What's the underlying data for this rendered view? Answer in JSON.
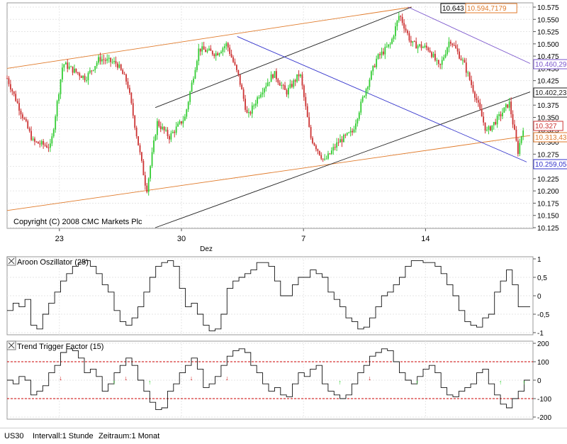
{
  "copyright": "Copyright (C) 2008 CMC Markets Plc",
  "footer": {
    "symbol": "US30",
    "interval": "Intervall:1 Stunde",
    "period": "Zeitraum:1 Monat"
  },
  "colors": {
    "up_candle": "#33cc33",
    "down_candle": "#cc3333",
    "channel_orange": "#e07a2a",
    "channel_black": "#222222",
    "channel_blue": "#3333cc",
    "channel_purple": "#7a55cc",
    "threshold_red": "#cc0000",
    "arrow_up": "#22cc22",
    "arrow_down": "#cc0000"
  },
  "chart_data": [
    {
      "type": "candlestick",
      "panel": "price",
      "x_tick_labels": [
        "23",
        "30",
        "7",
        "14"
      ],
      "x_sublabel": "Dez",
      "y_tick_labels": [
        "10.575",
        "10.550",
        "10.525",
        "10.500",
        "10.475",
        "10.450",
        "10.425",
        "10.400",
        "10.375",
        "10.350",
        "10.325",
        "10.300",
        "10.275",
        "10.250",
        "10.225",
        "10.200",
        "10.175",
        "10.150",
        "10.125"
      ],
      "ylim": [
        10125,
        10575
      ],
      "price_labels": [
        {
          "text": "10.643",
          "color": "#000000"
        },
        {
          "text": "10.594,7179",
          "color": "#e07a2a"
        },
        {
          "text": "10.460,29",
          "color": "#7a55cc"
        },
        {
          "text": "10.402,23",
          "color": "#222222"
        },
        {
          "text": "10.327",
          "color": "#cc3333"
        },
        {
          "text": "10.313,43",
          "color": "#e07a2a"
        },
        {
          "text": "10.259,05",
          "color": "#3333cc"
        }
      ],
      "path": [
        {
          "day": 0,
          "value": 10430
        },
        {
          "day": 1.5,
          "value": 10300
        },
        {
          "day": 2.5,
          "value": 10290
        },
        {
          "day": 3.2,
          "value": 10460
        },
        {
          "day": 4.5,
          "value": 10430
        },
        {
          "day": 5.3,
          "value": 10470
        },
        {
          "day": 6.3,
          "value": 10460
        },
        {
          "day": 6.9,
          "value": 10420
        },
        {
          "day": 7.6,
          "value": 10280
        },
        {
          "day": 8.0,
          "value": 10200
        },
        {
          "day": 8.6,
          "value": 10340
        },
        {
          "day": 9.3,
          "value": 10310
        },
        {
          "day": 10.2,
          "value": 10350
        },
        {
          "day": 11.0,
          "value": 10490
        },
        {
          "day": 12.0,
          "value": 10480
        },
        {
          "day": 12.6,
          "value": 10500
        },
        {
          "day": 13.3,
          "value": 10430
        },
        {
          "day": 13.8,
          "value": 10350
        },
        {
          "day": 14.5,
          "value": 10400
        },
        {
          "day": 15.3,
          "value": 10440
        },
        {
          "day": 16.0,
          "value": 10400
        },
        {
          "day": 16.8,
          "value": 10440
        },
        {
          "day": 17.4,
          "value": 10310
        },
        {
          "day": 18.2,
          "value": 10260
        },
        {
          "day": 19.0,
          "value": 10300
        },
        {
          "day": 19.8,
          "value": 10320
        },
        {
          "day": 20.5,
          "value": 10400
        },
        {
          "day": 21.2,
          "value": 10470
        },
        {
          "day": 22.0,
          "value": 10500
        },
        {
          "day": 22.5,
          "value": 10560
        },
        {
          "day": 23.2,
          "value": 10500
        },
        {
          "day": 24.2,
          "value": 10490
        },
        {
          "day": 24.8,
          "value": 10450
        },
        {
          "day": 25.4,
          "value": 10510
        },
        {
          "day": 26.2,
          "value": 10460
        },
        {
          "day": 26.8,
          "value": 10400
        },
        {
          "day": 27.5,
          "value": 10320
        },
        {
          "day": 28.2,
          "value": 10350
        },
        {
          "day": 28.8,
          "value": 10380
        },
        {
          "day": 29.3,
          "value": 10280
        },
        {
          "day": 29.6,
          "value": 10330
        }
      ],
      "x_ticks_day": [
        3,
        10,
        17,
        24
      ],
      "xlim_day": [
        0,
        30
      ],
      "trendlines": [
        {
          "color": "orange",
          "from": {
            "day": 0,
            "value": 10450
          },
          "to": {
            "day": 23.2,
            "value": 10575
          }
        },
        {
          "color": "orange",
          "from": {
            "day": 0,
            "value": 10160
          },
          "to": {
            "day": 30,
            "value": 10313
          }
        },
        {
          "color": "black",
          "from": {
            "day": 8.5,
            "value": 10370
          },
          "to": {
            "day": 23.2,
            "value": 10575
          }
        },
        {
          "color": "black",
          "from": {
            "day": 8.5,
            "value": 10125
          },
          "to": {
            "day": 30,
            "value": 10402
          }
        },
        {
          "color": "blue",
          "from": {
            "day": 13.2,
            "value": 10515
          },
          "to": {
            "day": 29.8,
            "value": 10259
          }
        },
        {
          "color": "purple",
          "from": {
            "day": 23.0,
            "value": 10575
          },
          "to": {
            "day": 30,
            "value": 10460
          }
        }
      ]
    },
    {
      "type": "line",
      "panel": "aroon",
      "title": "Aroon Oszillator (25)",
      "y_tick_labels": [
        "1",
        "0,5",
        "0",
        "-0,5",
        "-1"
      ],
      "ylim": [
        -1,
        1
      ],
      "values": [
        -0.4,
        -0.2,
        -0.3,
        -0.1,
        -0.8,
        -0.9,
        -0.5,
        -0.2,
        0.1,
        0.4,
        0.6,
        0.8,
        0.9,
        0.95,
        0.8,
        0.6,
        0.3,
        0.1,
        -0.4,
        -0.7,
        -0.8,
        -0.6,
        -0.3,
        0.1,
        0.5,
        0.8,
        0.9,
        0.95,
        0.8,
        0.2,
        -0.3,
        -0.2,
        -0.5,
        -0.8,
        -0.95,
        -0.9,
        -0.5,
        0.2,
        0.4,
        0.5,
        0.6,
        0.7,
        0.9,
        0.9,
        0.8,
        0.4,
        0.0,
        0.0,
        0.3,
        0.5,
        0.5,
        0.7,
        0.6,
        0.5,
        0.1,
        -0.1,
        -0.3,
        -0.6,
        -0.7,
        -0.9,
        -0.85,
        -0.6,
        -0.3,
        0.0,
        0.1,
        0.3,
        0.5,
        0.8,
        0.95,
        0.95,
        0.9,
        0.9,
        0.8,
        0.6,
        0.3,
        0.0,
        -0.4,
        -0.7,
        -0.8,
        -0.85,
        -0.6,
        -0.5,
        0.1,
        0.4,
        0.7,
        0.3,
        -0.3,
        -0.3
      ]
    },
    {
      "type": "line",
      "panel": "ttf",
      "title": "Trend Trigger Factor (15)",
      "y_tick_labels": [
        "200",
        "100",
        "0",
        "-100",
        "-200"
      ],
      "ylim": [
        -200,
        200
      ],
      "thresholds": [
        100,
        -100
      ],
      "values": [
        0,
        -20,
        20,
        0,
        -80,
        -60,
        -30,
        40,
        80,
        150,
        170,
        160,
        120,
        40,
        60,
        20,
        -60,
        -20,
        40,
        80,
        120,
        80,
        0,
        -60,
        -120,
        -160,
        -150,
        -60,
        -20,
        40,
        80,
        120,
        60,
        -40,
        -20,
        20,
        80,
        130,
        160,
        170,
        150,
        80,
        40,
        -20,
        -60,
        -40,
        -80,
        -90,
        -20,
        40,
        20,
        60,
        80,
        -20,
        -60,
        -80,
        -100,
        -80,
        -20,
        40,
        80,
        130,
        150,
        170,
        160,
        100,
        40,
        0,
        -20,
        20,
        60,
        80,
        40,
        -40,
        -80,
        -90,
        -60,
        -40,
        -20,
        40,
        60,
        -20,
        -80,
        -130,
        -150,
        -100,
        -60,
        0
      ]
    }
  ]
}
